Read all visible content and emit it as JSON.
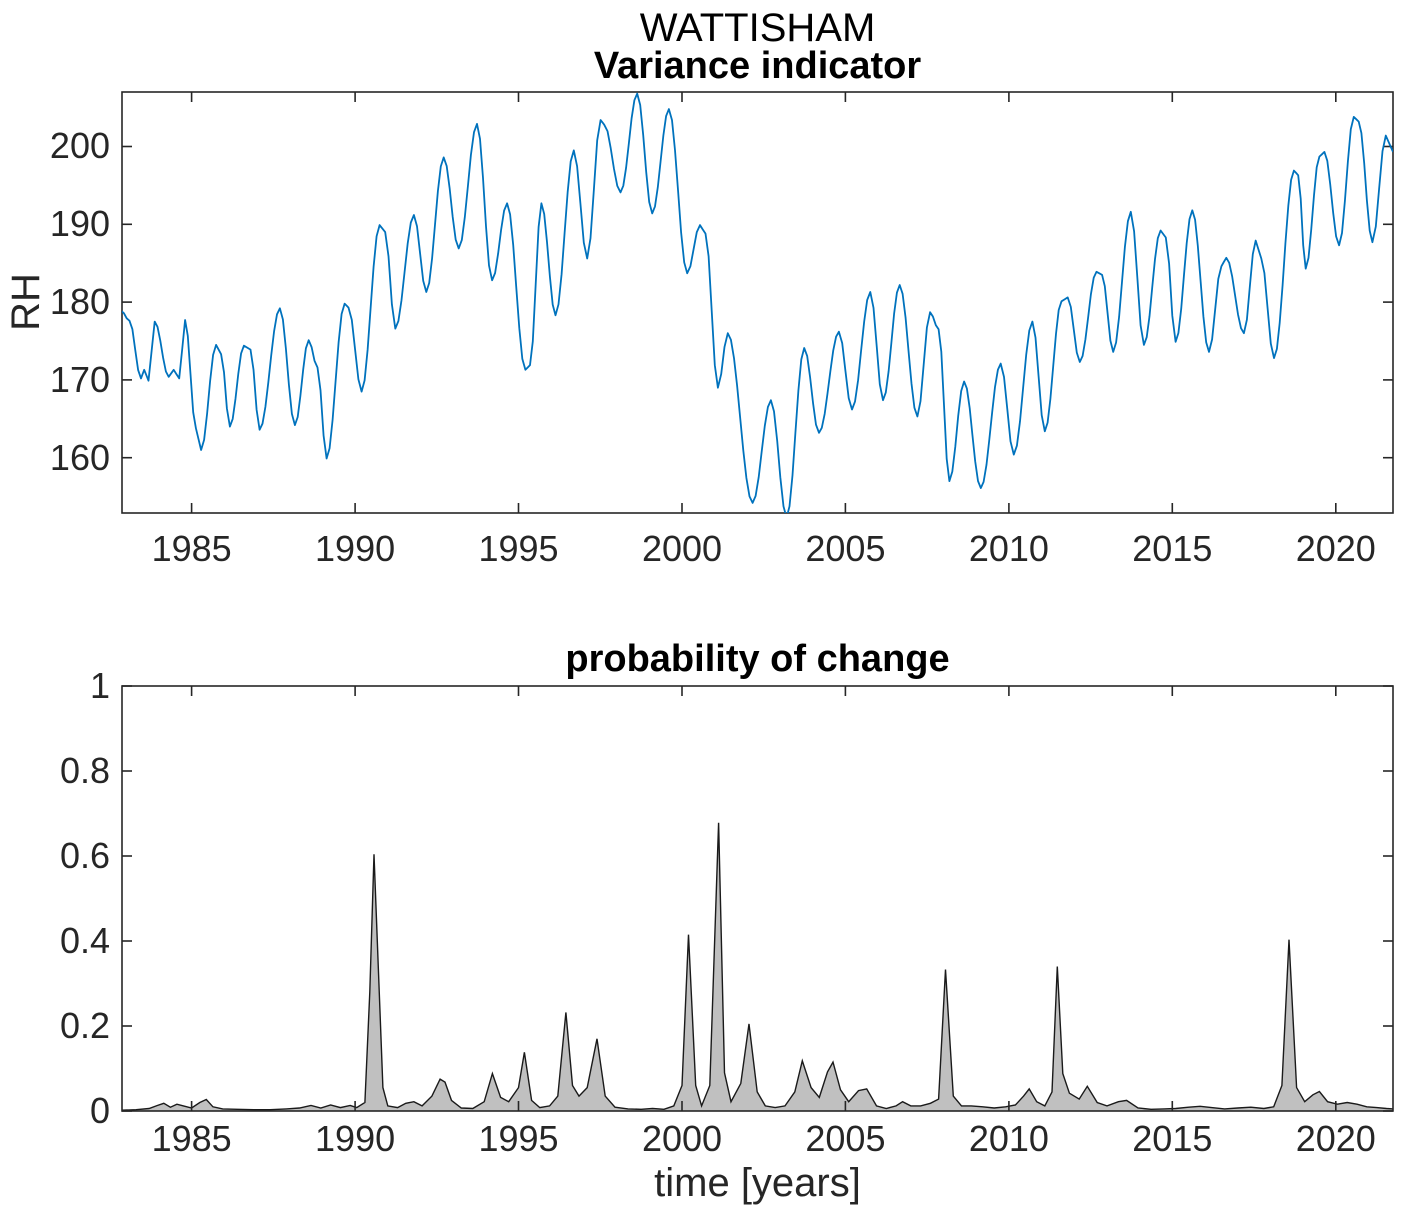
{
  "figure": {
    "suptitle": "WATTISHAM",
    "background": "#ffffff",
    "axis_color": "#262626",
    "text_color": "#262626"
  },
  "chart_data": [
    {
      "type": "line",
      "title": "Variance indicator",
      "ylabel": "RH",
      "xlabel": "",
      "line_color": "#0072BD",
      "xlim": [
        1982.87,
        2021.75
      ],
      "ylim": [
        152.9,
        207.0
      ],
      "xticks": [
        1985,
        1990,
        1995,
        2000,
        2005,
        2010,
        2015,
        2020
      ],
      "yticks": [
        160,
        170,
        180,
        190,
        200
      ],
      "grid": false,
      "points": [
        [
          1982.84,
          178.9
        ],
        [
          1983.1,
          177.6
        ],
        [
          1983.45,
          170.2
        ],
        [
          1983.55,
          171.3
        ],
        [
          1983.68,
          169.9
        ],
        [
          1983.87,
          177.5
        ],
        [
          1984.3,
          170.4
        ],
        [
          1984.45,
          171.3
        ],
        [
          1984.62,
          170.2
        ],
        [
          1984.8,
          177.7
        ],
        [
          1985.13,
          163.8
        ],
        [
          1985.29,
          161.0
        ],
        [
          1985.75,
          174.5
        ],
        [
          1985.9,
          173.3
        ],
        [
          1986.17,
          164.0
        ],
        [
          1986.6,
          174.4
        ],
        [
          1986.8,
          173.9
        ],
        [
          1987.08,
          163.6
        ],
        [
          1987.7,
          179.2
        ],
        [
          1988.16,
          164.2
        ],
        [
          1988.58,
          175.1
        ],
        [
          1988.85,
          171.6
        ],
        [
          1989.13,
          159.9
        ],
        [
          1989.68,
          179.8
        ],
        [
          1989.8,
          179.3
        ],
        [
          1990.2,
          168.5
        ],
        [
          1990.75,
          189.9
        ],
        [
          1990.92,
          189.0
        ],
        [
          1991.23,
          176.6
        ],
        [
          1991.8,
          191.2
        ],
        [
          1992.18,
          181.3
        ],
        [
          1992.71,
          198.6
        ],
        [
          1993.17,
          186.9
        ],
        [
          1993.73,
          202.9
        ],
        [
          1994.19,
          182.8
        ],
        [
          1994.65,
          192.7
        ],
        [
          1995.21,
          171.3
        ],
        [
          1995.35,
          171.9
        ],
        [
          1995.7,
          192.7
        ],
        [
          1996.13,
          178.3
        ],
        [
          1996.69,
          199.5
        ],
        [
          1997.1,
          185.6
        ],
        [
          1997.51,
          203.4
        ],
        [
          1997.62,
          202.8
        ],
        [
          1998.12,
          194.1
        ],
        [
          1998.63,
          206.8
        ],
        [
          1999.09,
          191.4
        ],
        [
          1999.6,
          204.8
        ],
        [
          2000.16,
          183.7
        ],
        [
          2000.55,
          189.9
        ],
        [
          2000.72,
          188.8
        ],
        [
          2001.1,
          169.0
        ],
        [
          2001.4,
          176.0
        ],
        [
          2002.16,
          154.2
        ],
        [
          2002.72,
          167.4
        ],
        [
          2003.2,
          152.3
        ],
        [
          2003.74,
          174.1
        ],
        [
          2004.19,
          163.2
        ],
        [
          2004.8,
          176.2
        ],
        [
          2005.2,
          166.2
        ],
        [
          2005.76,
          181.3
        ],
        [
          2006.15,
          167.4
        ],
        [
          2006.66,
          182.2
        ],
        [
          2007.2,
          165.3
        ],
        [
          2007.59,
          178.7
        ],
        [
          2007.85,
          176.5
        ],
        [
          2008.18,
          157.0
        ],
        [
          2008.63,
          169.8
        ],
        [
          2009.14,
          156.1
        ],
        [
          2009.75,
          172.1
        ],
        [
          2010.15,
          160.4
        ],
        [
          2010.72,
          177.5
        ],
        [
          2011.1,
          163.4
        ],
        [
          2011.61,
          180.1
        ],
        [
          2011.8,
          180.6
        ],
        [
          2012.17,
          172.3
        ],
        [
          2012.68,
          183.9
        ],
        [
          2012.85,
          183.5
        ],
        [
          2013.19,
          173.6
        ],
        [
          2013.73,
          191.6
        ],
        [
          2014.13,
          174.5
        ],
        [
          2014.64,
          189.2
        ],
        [
          2014.8,
          188.3
        ],
        [
          2015.1,
          174.9
        ],
        [
          2015.61,
          191.8
        ],
        [
          2016.12,
          173.6
        ],
        [
          2016.5,
          184.6
        ],
        [
          2016.65,
          185.7
        ],
        [
          2017.19,
          176.0
        ],
        [
          2017.55,
          187.9
        ],
        [
          2017.72,
          185.6
        ],
        [
          2018.11,
          172.8
        ],
        [
          2018.72,
          196.9
        ],
        [
          2018.85,
          196.3
        ],
        [
          2019.08,
          184.3
        ],
        [
          2019.5,
          198.7
        ],
        [
          2019.65,
          199.3
        ],
        [
          2020.1,
          187.3
        ],
        [
          2020.55,
          203.8
        ],
        [
          2020.7,
          203.2
        ],
        [
          2021.12,
          187.7
        ],
        [
          2021.53,
          201.4
        ],
        [
          2021.75,
          199.3
        ]
      ]
    },
    {
      "type": "area",
      "title": "probability of change",
      "xlabel": "time [years]",
      "ylabel": "",
      "fill_color": "#c0c0c0",
      "edge_color": "#1a1a1a",
      "xlim": [
        1982.87,
        2021.75
      ],
      "ylim": [
        0,
        1
      ],
      "xticks": [
        1985,
        1990,
        1995,
        2000,
        2005,
        2010,
        2015,
        2020
      ],
      "yticks": [
        0,
        0.2,
        0.4,
        0.6,
        0.8,
        1
      ],
      "ytick_labels": [
        "0",
        "0.2",
        "0.4",
        "0.6",
        "0.8",
        "1"
      ],
      "grid": false,
      "points": [
        [
          1982.87,
          0.002
        ],
        [
          1983.3,
          0.003
        ],
        [
          1983.7,
          0.006
        ],
        [
          1983.95,
          0.013
        ],
        [
          1984.15,
          0.018
        ],
        [
          1984.35,
          0.009
        ],
        [
          1984.55,
          0.016
        ],
        [
          1984.75,
          0.012
        ],
        [
          1985.0,
          0.007
        ],
        [
          1985.25,
          0.02
        ],
        [
          1985.45,
          0.027
        ],
        [
          1985.65,
          0.01
        ],
        [
          1985.95,
          0.005
        ],
        [
          1986.4,
          0.004
        ],
        [
          1986.9,
          0.003
        ],
        [
          1987.4,
          0.003
        ],
        [
          1987.9,
          0.005
        ],
        [
          1988.3,
          0.007
        ],
        [
          1988.65,
          0.013
        ],
        [
          1988.95,
          0.007
        ],
        [
          1989.25,
          0.014
        ],
        [
          1989.55,
          0.008
        ],
        [
          1989.85,
          0.013
        ],
        [
          1990.05,
          0.008
        ],
        [
          1990.3,
          0.02
        ],
        [
          1990.45,
          0.28
        ],
        [
          1990.58,
          0.604
        ],
        [
          1990.72,
          0.32
        ],
        [
          1990.85,
          0.055
        ],
        [
          1991.0,
          0.012
        ],
        [
          1991.3,
          0.008
        ],
        [
          1991.55,
          0.018
        ],
        [
          1991.8,
          0.022
        ],
        [
          1992.05,
          0.012
        ],
        [
          1992.35,
          0.035
        ],
        [
          1992.6,
          0.075
        ],
        [
          1992.75,
          0.068
        ],
        [
          1992.95,
          0.025
        ],
        [
          1993.25,
          0.007
        ],
        [
          1993.6,
          0.006
        ],
        [
          1993.95,
          0.022
        ],
        [
          1994.2,
          0.088
        ],
        [
          1994.45,
          0.032
        ],
        [
          1994.7,
          0.022
        ],
        [
          1995.0,
          0.055
        ],
        [
          1995.18,
          0.138
        ],
        [
          1995.4,
          0.025
        ],
        [
          1995.65,
          0.008
        ],
        [
          1995.95,
          0.012
        ],
        [
          1996.2,
          0.035
        ],
        [
          1996.45,
          0.232
        ],
        [
          1996.65,
          0.06
        ],
        [
          1996.85,
          0.035
        ],
        [
          1997.1,
          0.055
        ],
        [
          1997.4,
          0.17
        ],
        [
          1997.65,
          0.035
        ],
        [
          1997.95,
          0.009
        ],
        [
          1998.35,
          0.005
        ],
        [
          1998.75,
          0.004
        ],
        [
          1999.1,
          0.006
        ],
        [
          1999.45,
          0.004
        ],
        [
          1999.75,
          0.012
        ],
        [
          2000.0,
          0.06
        ],
        [
          2000.2,
          0.415
        ],
        [
          2000.42,
          0.06
        ],
        [
          2000.6,
          0.012
        ],
        [
          2000.85,
          0.06
        ],
        [
          2001.12,
          0.678
        ],
        [
          2001.3,
          0.09
        ],
        [
          2001.5,
          0.022
        ],
        [
          2001.8,
          0.065
        ],
        [
          2002.05,
          0.205
        ],
        [
          2002.3,
          0.045
        ],
        [
          2002.55,
          0.012
        ],
        [
          2002.85,
          0.008
        ],
        [
          2003.15,
          0.012
        ],
        [
          2003.45,
          0.045
        ],
        [
          2003.68,
          0.118
        ],
        [
          2003.95,
          0.055
        ],
        [
          2004.2,
          0.032
        ],
        [
          2004.45,
          0.092
        ],
        [
          2004.62,
          0.115
        ],
        [
          2004.85,
          0.05
        ],
        [
          2005.1,
          0.022
        ],
        [
          2005.4,
          0.048
        ],
        [
          2005.65,
          0.052
        ],
        [
          2005.95,
          0.012
        ],
        [
          2006.25,
          0.006
        ],
        [
          2006.55,
          0.012
        ],
        [
          2006.75,
          0.022
        ],
        [
          2007.0,
          0.012
        ],
        [
          2007.3,
          0.012
        ],
        [
          2007.6,
          0.018
        ],
        [
          2007.85,
          0.028
        ],
        [
          2008.06,
          0.333
        ],
        [
          2008.3,
          0.035
        ],
        [
          2008.55,
          0.012
        ],
        [
          2008.85,
          0.012
        ],
        [
          2009.2,
          0.01
        ],
        [
          2009.55,
          0.007
        ],
        [
          2009.9,
          0.01
        ],
        [
          2010.2,
          0.014
        ],
        [
          2010.45,
          0.035
        ],
        [
          2010.62,
          0.052
        ],
        [
          2010.85,
          0.022
        ],
        [
          2011.1,
          0.012
        ],
        [
          2011.32,
          0.045
        ],
        [
          2011.48,
          0.34
        ],
        [
          2011.65,
          0.088
        ],
        [
          2011.85,
          0.042
        ],
        [
          2012.15,
          0.028
        ],
        [
          2012.4,
          0.058
        ],
        [
          2012.7,
          0.02
        ],
        [
          2013.0,
          0.012
        ],
        [
          2013.35,
          0.022
        ],
        [
          2013.6,
          0.025
        ],
        [
          2013.95,
          0.007
        ],
        [
          2014.35,
          0.004
        ],
        [
          2014.75,
          0.005
        ],
        [
          2015.1,
          0.006
        ],
        [
          2015.5,
          0.009
        ],
        [
          2015.85,
          0.011
        ],
        [
          2016.2,
          0.008
        ],
        [
          2016.6,
          0.005
        ],
        [
          2017.0,
          0.007
        ],
        [
          2017.4,
          0.009
        ],
        [
          2017.8,
          0.006
        ],
        [
          2018.1,
          0.01
        ],
        [
          2018.35,
          0.06
        ],
        [
          2018.57,
          0.403
        ],
        [
          2018.8,
          0.055
        ],
        [
          2019.05,
          0.022
        ],
        [
          2019.3,
          0.038
        ],
        [
          2019.5,
          0.046
        ],
        [
          2019.75,
          0.022
        ],
        [
          2020.05,
          0.016
        ],
        [
          2020.35,
          0.02
        ],
        [
          2020.65,
          0.016
        ],
        [
          2020.95,
          0.01
        ],
        [
          2021.25,
          0.008
        ],
        [
          2021.55,
          0.006
        ],
        [
          2021.75,
          0.005
        ]
      ]
    }
  ]
}
